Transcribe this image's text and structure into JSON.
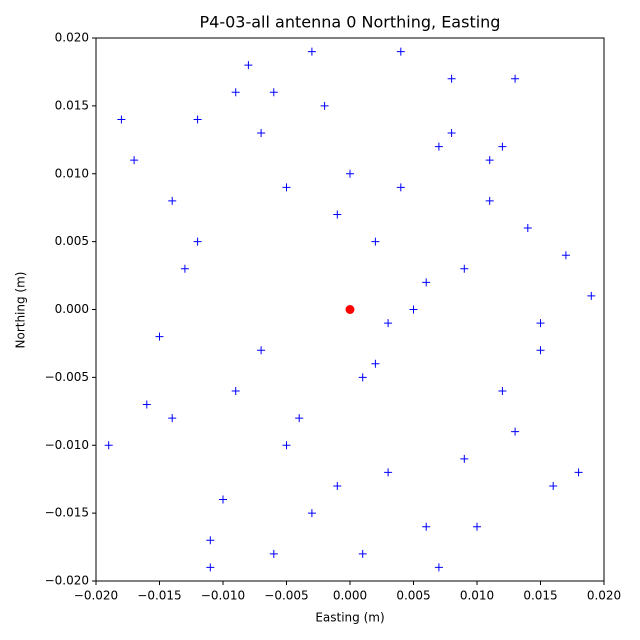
{
  "chart_data": {
    "type": "scatter",
    "title": "P4-03-all antenna 0 Northing, Easting",
    "x_label": "Easting (m)",
    "y_label": "Northing (m)",
    "xlim": [
      -0.02,
      0.02
    ],
    "ylim": [
      -0.02,
      0.02
    ],
    "xticks": [
      {
        "value": -0.02,
        "label": "−0.020"
      },
      {
        "value": -0.015,
        "label": "−0.015"
      },
      {
        "value": -0.01,
        "label": "−0.010"
      },
      {
        "value": -0.005,
        "label": "−0.005"
      },
      {
        "value": 0,
        "label": "0.000"
      },
      {
        "value": 0.005,
        "label": "0.005"
      },
      {
        "value": 0.01,
        "label": "0.010"
      },
      {
        "value": 0.015,
        "label": "0.015"
      },
      {
        "value": 0.02,
        "label": "0.020"
      }
    ],
    "yticks": [
      {
        "value": -0.02,
        "label": "−0.020"
      },
      {
        "value": -0.015,
        "label": "−0.015"
      },
      {
        "value": -0.01,
        "label": "−0.010"
      },
      {
        "value": -0.005,
        "label": "−0.005"
      },
      {
        "value": 0,
        "label": "0.000"
      },
      {
        "value": 0.005,
        "label": "0.005"
      },
      {
        "value": 0.01,
        "label": "0.010"
      },
      {
        "value": 0.015,
        "label": "0.015"
      },
      {
        "value": 0.02,
        "label": "0.020"
      }
    ],
    "series": [
      {
        "color": "#0000ff",
        "marker": "plus",
        "x": [
          -0.012,
          0.003,
          0.008,
          -0.005,
          0.015,
          -0.018,
          0.001,
          -0.009,
          0.011,
          0.006,
          -0.003,
          0.013,
          -0.015,
          0.004,
          -0.007,
          0.009,
          -0.001,
          0.017,
          -0.011,
          0.002,
          -0.006,
          0.012,
          -0.014,
          0.007,
          0,
          -0.004,
          0.01,
          -0.008,
          0.016,
          -0.016,
          0.005,
          -0.002,
          0.014,
          -0.01,
          0.003,
          -0.013,
          0.008,
          -0.019,
          0.019,
          0.001,
          -0.006,
          0.011,
          -0.003,
          0.006,
          -0.012,
          0.013,
          -0.001,
          0.009,
          -0.017,
          0.018,
          -0.005,
          0.004,
          -0.009,
          0.012,
          -0.007,
          0.002,
          0.015,
          -0.014,
          0.007,
          -0.011
        ],
        "values": [
          0.005,
          -0.012,
          0.017,
          0.009,
          -0.003,
          0.014,
          -0.018,
          -0.006,
          0.011,
          0.002,
          -0.015,
          -0.009,
          -0.002,
          0.019,
          0.013,
          -0.011,
          0.007,
          0.004,
          -0.017,
          -0.004,
          0.016,
          0.012,
          0.008,
          -0.019,
          0.01,
          -0.008,
          -0.016,
          0.018,
          -0.013,
          -0.007,
          0,
          0.015,
          0.006,
          -0.014,
          -0.001,
          0.003,
          0.013,
          -0.01,
          0.001,
          -0.005,
          -0.018,
          0.008,
          0.019,
          -0.016,
          0.014,
          0.017,
          -0.013,
          0.003,
          0.011,
          -0.012,
          -0.01,
          0.009,
          0.016,
          -0.006,
          -0.003,
          0.005,
          -0.001,
          -0.008,
          0.012,
          -0.019
        ]
      },
      {
        "color": "#ff0000",
        "marker": "circle",
        "x": [
          0
        ],
        "values": [
          0
        ]
      }
    ]
  }
}
